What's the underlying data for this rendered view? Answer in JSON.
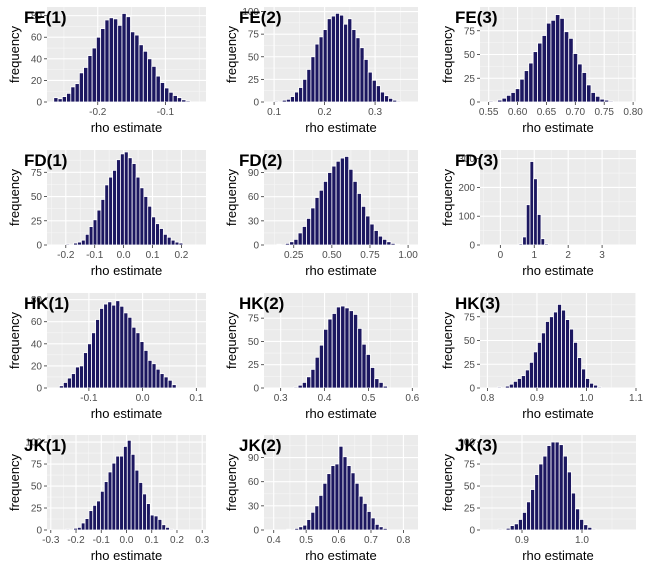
{
  "chart_data": [
    {
      "type": "bar",
      "tag": "FE(1)",
      "xlabel": "rho estimate",
      "ylabel": "frequency",
      "xlim": [
        -0.275,
        -0.04
      ],
      "ylim": [
        0,
        88
      ],
      "xticks": [
        -0.2,
        -0.1
      ],
      "xtick_labels": [
        "-0.2",
        "-0.1"
      ],
      "yticks": [
        0,
        20,
        40,
        60,
        80
      ],
      "ytick_labels": [
        "0",
        "20",
        "40",
        "60",
        "80"
      ],
      "bins": {
        "start": -0.265,
        "width": 0.0063,
        "counts": [
          4,
          3,
          5,
          8,
          14,
          17,
          27,
          32,
          43,
          50,
          60,
          68,
          76,
          78,
          77,
          71,
          82,
          79,
          65,
          62,
          53,
          47,
          40,
          33,
          24,
          18,
          13,
          9,
          6,
          4,
          2,
          1
        ]
      }
    },
    {
      "type": "bar",
      "tag": "FE(2)",
      "xlabel": "rho estimate",
      "ylabel": "frequency",
      "xlim": [
        0.08,
        0.385
      ],
      "ylim": [
        0,
        105
      ],
      "xticks": [
        0.1,
        0.2,
        0.3
      ],
      "xtick_labels": [
        "0.1",
        "0.2",
        "0.3"
      ],
      "yticks": [
        0,
        25,
        50,
        75,
        100
      ],
      "ytick_labels": [
        "0",
        "25",
        "50",
        "75",
        "100"
      ],
      "bins": {
        "start": 0.1,
        "width": 0.0081,
        "counts": [
          1,
          0,
          2,
          3,
          6,
          11,
          16,
          25,
          36,
          50,
          64,
          72,
          80,
          92,
          95,
          98,
          96,
          86,
          92,
          80,
          71,
          60,
          47,
          33,
          24,
          18,
          11,
          7,
          4,
          2,
          1
        ]
      }
    },
    {
      "type": "bar",
      "tag": "FE(3)",
      "xlabel": "rho estimate",
      "ylabel": "frequency",
      "xlim": [
        0.535,
        0.805
      ],
      "ylim": [
        0,
        100
      ],
      "xticks": [
        0.55,
        0.6,
        0.65,
        0.7,
        0.75,
        0.8
      ],
      "xtick_labels": [
        "0.55",
        "0.60",
        "0.65",
        "0.70",
        "0.75",
        "0.80"
      ],
      "yticks": [
        0,
        25,
        50,
        75
      ],
      "ytick_labels": [
        "0",
        "25",
        "50",
        "75"
      ],
      "bins": {
        "start": 0.55,
        "width": 0.0077,
        "counts": [
          1,
          0,
          2,
          4,
          7,
          10,
          14,
          24,
          33,
          41,
          53,
          62,
          70,
          83,
          86,
          92,
          88,
          74,
          67,
          51,
          40,
          31,
          18,
          10,
          6,
          3,
          2,
          1
        ]
      }
    },
    {
      "type": "bar",
      "tag": "FD(1)",
      "xlabel": "rho estimate",
      "ylabel": "frequency",
      "xlim": [
        -0.265,
        0.285
      ],
      "ylim": [
        0,
        98
      ],
      "xticks": [
        -0.2,
        -0.1,
        0.0,
        0.1,
        0.2
      ],
      "xtick_labels": [
        "-0.2",
        "-0.1",
        "0.0",
        "0.1",
        "0.2"
      ],
      "yticks": [
        0,
        25,
        50,
        75
      ],
      "ytick_labels": [
        "0",
        "25",
        "50",
        "75"
      ],
      "bins": {
        "start": -0.2,
        "width": 0.0135,
        "counts": [
          1,
          0,
          2,
          3,
          5,
          11,
          19,
          26,
          36,
          47,
          62,
          70,
          77,
          88,
          94,
          96,
          90,
          84,
          70,
          59,
          50,
          40,
          29,
          22,
          17,
          11,
          8,
          5,
          3,
          2
        ]
      }
    },
    {
      "type": "bar",
      "tag": "FD(2)",
      "xlabel": "rho estimate",
      "ylabel": "frequency",
      "xlim": [
        0.055,
        1.065
      ],
      "ylim": [
        0,
        118
      ],
      "xticks": [
        0.25,
        0.5,
        0.75,
        1.0
      ],
      "xtick_labels": [
        "0.25",
        "0.50",
        "0.75",
        "1.00"
      ],
      "yticks": [
        0,
        30,
        60,
        90
      ],
      "ytick_labels": [
        "0",
        "30",
        "60",
        "90"
      ],
      "bins": {
        "start": 0.14,
        "width": 0.0277,
        "counts": [
          1,
          0,
          2,
          4,
          7,
          15,
          23,
          33,
          46,
          59,
          68,
          79,
          90,
          98,
          104,
          108,
          110,
          94,
          79,
          64,
          48,
          36,
          26,
          18,
          11,
          7,
          4,
          2,
          1
        ]
      }
    },
    {
      "type": "bar",
      "tag": "FD(3)",
      "xlabel": "rho estimate",
      "ylabel": "frequency",
      "xlim": [
        -0.6,
        4.0
      ],
      "ylim": [
        0,
        330
      ],
      "xticks": [
        0,
        1,
        2,
        3
      ],
      "xtick_labels": [
        "0",
        "1",
        "2",
        "3"
      ],
      "yticks": [
        0,
        100,
        200,
        300
      ],
      "ytick_labels": [
        "0",
        "100",
        "200",
        "300"
      ],
      "bins": {
        "start": 0.55,
        "width": 0.108,
        "counts": [
          4,
          28,
          140,
          290,
          230,
          106,
          22,
          4,
          1
        ]
      }
    },
    {
      "type": "bar",
      "tag": "HK(1)",
      "xlabel": "rho estimate",
      "ylabel": "frequency",
      "xlim": [
        -0.178,
        0.118
      ],
      "ylim": [
        0,
        86
      ],
      "xticks": [
        -0.1,
        0.0,
        0.1
      ],
      "xtick_labels": [
        "-0.1",
        "0.0",
        "0.1"
      ],
      "yticks": [
        0,
        20,
        40,
        60,
        80
      ],
      "ytick_labels": [
        "0",
        "20",
        "40",
        "60",
        "80"
      ],
      "bins": {
        "start": -0.155,
        "width": 0.0075,
        "counts": [
          2,
          5,
          9,
          13,
          19,
          20,
          32,
          40,
          50,
          62,
          72,
          76,
          78,
          75,
          79,
          74,
          68,
          64,
          55,
          50,
          42,
          34,
          25,
          22,
          17,
          13,
          10,
          7,
          3
        ]
      }
    },
    {
      "type": "bar",
      "tag": "HK(2)",
      "xlabel": "rho estimate",
      "ylabel": "frequency",
      "xlim": [
        0.262,
        0.613
      ],
      "ylim": [
        0,
        102
      ],
      "xticks": [
        0.3,
        0.4,
        0.5,
        0.6
      ],
      "xtick_labels": [
        "0.3",
        "0.4",
        "0.5",
        "0.6"
      ],
      "yticks": [
        0,
        25,
        50,
        75
      ],
      "ytick_labels": [
        "0",
        "25",
        "50",
        "75"
      ],
      "bins": {
        "start": 0.33,
        "width": 0.0097,
        "counts": [
          1,
          3,
          6,
          12,
          20,
          33,
          46,
          63,
          74,
          80,
          87,
          88,
          86,
          83,
          79,
          64,
          47,
          36,
          22,
          10,
          6,
          2
        ]
      }
    },
    {
      "type": "bar",
      "tag": "HK(3)",
      "xlabel": "rho estimate",
      "ylabel": "frequency",
      "xlim": [
        0.785,
        1.1
      ],
      "ylim": [
        0,
        100
      ],
      "xticks": [
        0.8,
        0.9,
        1.0,
        1.1
      ],
      "xtick_labels": [
        "0.8",
        "0.9",
        "1.0",
        "1.1"
      ],
      "yticks": [
        0,
        25,
        50,
        75
      ],
      "ytick_labels": [
        "0",
        "25",
        "50",
        "75"
      ],
      "bins": {
        "start": 0.82,
        "width": 0.0081,
        "counts": [
          1,
          0,
          2,
          4,
          7,
          10,
          13,
          19,
          27,
          38,
          48,
          58,
          70,
          75,
          80,
          88,
          82,
          72,
          62,
          48,
          32,
          20,
          10,
          5,
          3,
          1
        ]
      }
    },
    {
      "type": "bar",
      "tag": "JK(1)",
      "xlabel": "rho estimate",
      "ylabel": "frequency",
      "xlim": [
        -0.315,
        0.315
      ],
      "ylim": [
        0,
        108
      ],
      "xticks": [
        -0.3,
        -0.2,
        -0.1,
        0.0,
        0.1,
        0.2,
        0.3
      ],
      "xtick_labels": [
        "-0.3",
        "-0.2",
        "-0.1",
        "0.0",
        "0.1",
        "0.2",
        "0.3"
      ],
      "yticks": [
        0,
        25,
        50,
        75,
        100
      ],
      "ytick_labels": [
        "0",
        "25",
        "50",
        "75",
        "100"
      ],
      "bins": {
        "start": -0.24,
        "width": 0.0152,
        "counts": [
          1,
          0,
          2,
          3,
          8,
          13,
          22,
          28,
          33,
          44,
          55,
          66,
          76,
          84,
          84,
          95,
          102,
          86,
          68,
          54,
          41,
          30,
          17,
          16,
          12,
          6,
          3,
          1
        ]
      }
    },
    {
      "type": "bar",
      "tag": "JK(2)",
      "xlabel": "rho estimate",
      "ylabel": "frequency",
      "xlim": [
        0.37,
        0.845
      ],
      "ylim": [
        0,
        118
      ],
      "xticks": [
        0.4,
        0.5,
        0.6,
        0.7,
        0.8
      ],
      "xtick_labels": [
        "0.4",
        "0.5",
        "0.6",
        "0.7",
        "0.8"
      ],
      "yticks": [
        0,
        30,
        60,
        90
      ],
      "ytick_labels": [
        "0",
        "30",
        "60",
        "90"
      ],
      "bins": {
        "start": 0.44,
        "width": 0.0124,
        "counts": [
          1,
          0,
          2,
          4,
          6,
          13,
          22,
          30,
          43,
          58,
          70,
          80,
          82,
          104,
          91,
          80,
          71,
          58,
          42,
          33,
          23,
          15,
          7,
          4,
          2
        ]
      }
    },
    {
      "type": "bar",
      "tag": "JK(3)",
      "xlabel": "rho estimate",
      "ylabel": "frequency",
      "xlim": [
        0.83,
        1.09
      ],
      "ylim": [
        0,
        108
      ],
      "xticks": [
        0.9,
        1.0
      ],
      "xtick_labels": [
        "0.9",
        "1.0"
      ],
      "yticks": [
        0,
        25,
        50,
        75,
        100
      ],
      "ytick_labels": [
        "0",
        "25",
        "50",
        "75",
        "100"
      ],
      "bins": {
        "start": 0.86,
        "width": 0.0068,
        "counts": [
          1,
          0,
          2,
          5,
          7,
          12,
          20,
          32,
          46,
          63,
          75,
          84,
          96,
          100,
          100,
          97,
          84,
          66,
          42,
          24,
          12,
          6,
          3,
          1
        ]
      }
    }
  ]
}
